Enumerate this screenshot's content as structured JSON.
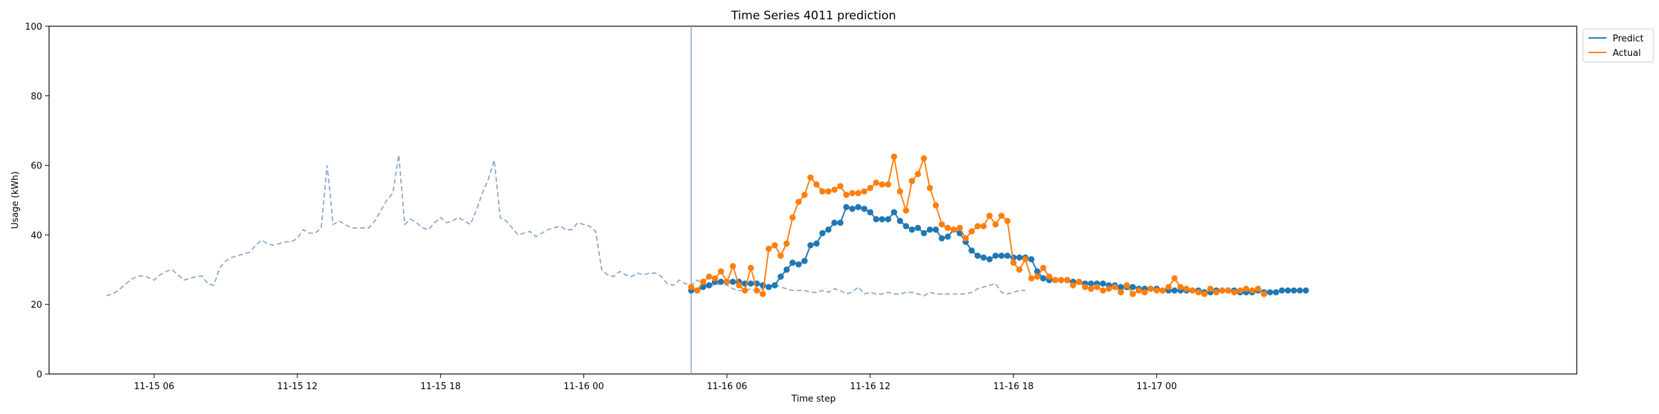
{
  "chart_data": {
    "type": "line",
    "title": "Time Series 4011 prediction",
    "xlabel": "Time step",
    "ylabel": "Usage (kWh)",
    "ylim": [
      0,
      100
    ],
    "yticks": [
      0,
      20,
      40,
      60,
      80,
      100
    ],
    "x_unit": "hours from 11-15 00:00",
    "xlim": [
      1.6,
      65.6
    ],
    "xticks": [
      {
        "value": 6,
        "label": "11-15 06"
      },
      {
        "value": 12,
        "label": "11-15 12"
      },
      {
        "value": 18,
        "label": "11-15 18"
      },
      {
        "value": 24,
        "label": "11-16 00"
      },
      {
        "value": 30,
        "label": "11-16 06"
      },
      {
        "value": 36,
        "label": "11-16 12"
      },
      {
        "value": 42,
        "label": "11-16 18"
      },
      {
        "value": 48,
        "label": "11-17 00"
      }
    ],
    "forecast_start": 28.5,
    "step_hours": 0.25,
    "grid": false,
    "legend_position": "outside top-right",
    "history": {
      "x_start": 4.0,
      "color": "#8aa7cc",
      "style": "dashed",
      "values": [
        22.5,
        23,
        24,
        25.5,
        27,
        28,
        28.2,
        27.8,
        27,
        28.5,
        29.5,
        30,
        28.5,
        27,
        27.5,
        28,
        28.2,
        26,
        25.5,
        30.5,
        32.5,
        33.5,
        34,
        34.5,
        35,
        37,
        38.5,
        37.5,
        37,
        37.5,
        38,
        38,
        39,
        41.5,
        40.5,
        40.5,
        42,
        60,
        43,
        44,
        43,
        42,
        42,
        42,
        42,
        44,
        47,
        50,
        52,
        63,
        43,
        44.5,
        43.5,
        42,
        41.5,
        43.5,
        45,
        43.5,
        44,
        45,
        44,
        43,
        47,
        52,
        56,
        61.5,
        45,
        44,
        42,
        40,
        40.5,
        41,
        39.5,
        40.5,
        41.5,
        42,
        42.5,
        41.5,
        41.5,
        43.5,
        43,
        42.5,
        41,
        30,
        28.5,
        28,
        29.5,
        28.5,
        28,
        29,
        28.5,
        29,
        29,
        28,
        26,
        25.5,
        27,
        26,
        25.5,
        27,
        26,
        25.5,
        25.5,
        26,
        25.5,
        24.5,
        24,
        24,
        24.5,
        24,
        24.5,
        25.5,
        25.5,
        25,
        24.5,
        24,
        24,
        24,
        23.5,
        23.5,
        24,
        23.5,
        24.5,
        24,
        23,
        23.5,
        25,
        23,
        23.5,
        23,
        23,
        23.5,
        23,
        23,
        23.5,
        23.5,
        23,
        22.5,
        23.5,
        23,
        23,
        23,
        23,
        23,
        23,
        23.5,
        24.5,
        25,
        25.5,
        26,
        23.5,
        23,
        23.5,
        24,
        24
      ]
    },
    "series": [
      {
        "name": "Predict",
        "color": "#1f77b4",
        "values": [
          24,
          24,
          25,
          25.5,
          26.5,
          26.5,
          26.5,
          26.5,
          26.5,
          26,
          26,
          26,
          25.5,
          25,
          25.5,
          28,
          30,
          32,
          31.5,
          32.5,
          37,
          37.5,
          40.5,
          41.5,
          43.5,
          43.5,
          48,
          47.5,
          48,
          47.5,
          46.5,
          44.5,
          44.5,
          44.5,
          46.5,
          44,
          42.5,
          41.5,
          42,
          40.5,
          41.5,
          41.5,
          39,
          39.5,
          41.5,
          40.5,
          38,
          35.5,
          34,
          33.5,
          33,
          34,
          34,
          34,
          33.5,
          33.5,
          33.5,
          33,
          29.5,
          27.5,
          27,
          27,
          27,
          27,
          26.5,
          26.5,
          26,
          26,
          26,
          26,
          25.5,
          25.5,
          25,
          25,
          25,
          24.5,
          24.5,
          24.5,
          24.5,
          24,
          24,
          24,
          24,
          24,
          24,
          24,
          23.5,
          23.5,
          24,
          24,
          24,
          24,
          23.5,
          23.5,
          23.5,
          24,
          23.5,
          23.5,
          23.5,
          24,
          24,
          24,
          24,
          24
        ]
      },
      {
        "name": "Actual",
        "color": "#ff7f0e",
        "values": [
          25,
          24,
          26.5,
          28,
          27.5,
          29.5,
          26.5,
          31,
          25.5,
          24,
          30.5,
          24,
          23,
          36,
          37,
          34,
          37.5,
          45,
          49.5,
          51.5,
          56.5,
          54.5,
          52.5,
          52.5,
          53,
          54,
          51.5,
          52,
          52,
          52.5,
          53.5,
          55,
          54.5,
          54.5,
          62.5,
          52.5,
          47,
          55.5,
          57.5,
          62,
          53.5,
          48.5,
          43,
          42,
          41.5,
          42,
          39,
          41,
          42.5,
          42.5,
          45.5,
          43,
          45.5,
          44,
          32,
          30,
          33,
          27.5,
          28,
          30.5,
          28,
          27,
          27,
          27,
          25.5,
          26.5,
          25,
          24.5,
          25,
          24,
          24.5,
          25,
          23.5,
          25.5,
          23,
          24,
          23.5,
          24.5,
          24,
          24,
          25,
          27.5,
          25,
          24.5,
          24,
          23.5,
          23,
          24.5,
          23.5,
          24,
          24,
          23.5,
          24,
          24.5,
          24,
          24.5,
          23
        ]
      }
    ]
  }
}
